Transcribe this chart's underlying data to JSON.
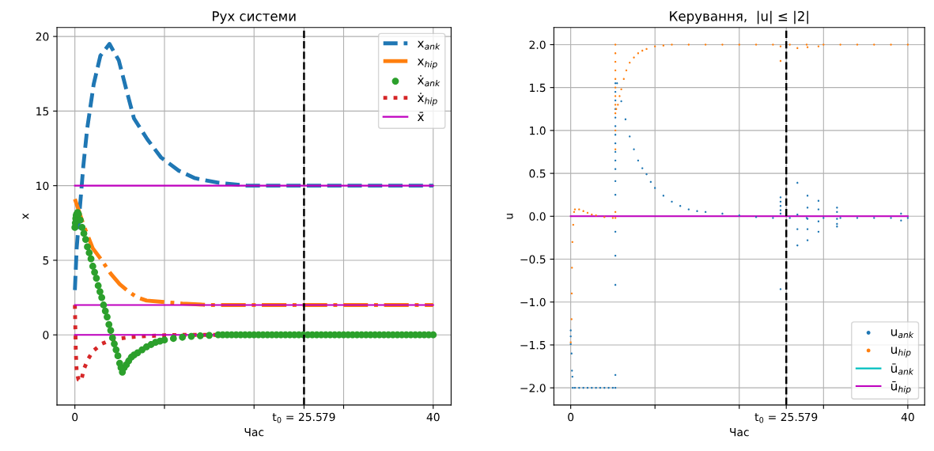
{
  "chart_data": [
    {
      "type": "line",
      "title": "Рух системи",
      "xlabel": "Час",
      "ylabel": "x",
      "xlim": [
        -2,
        42
      ],
      "ylim": [
        -4.7,
        20.6
      ],
      "xticks": [
        0,
        {
          "value": 10,
          "label": null
        },
        {
          "value": 20,
          "label": null
        },
        {
          "value": 25.579,
          "label": "t$_{0}$ = 25.579"
        },
        {
          "value": 30,
          "label": null
        },
        40
      ],
      "yticks": [
        0,
        5,
        10,
        15,
        20
      ],
      "grid": true,
      "legend": "top right",
      "ref_lines": [
        {
          "axis": "x",
          "value": 25.579,
          "color": "#000000",
          "line_style": "dashed"
        }
      ],
      "series": [
        {
          "name": "x$_{ank}$",
          "color": "#1f77b4",
          "line_style": "dashed",
          "x": [
            0,
            0.2,
            0.5,
            0.94,
            1.37,
            2.1,
            2.84,
            3.86,
            4.9,
            5.76,
            6.6,
            8.1,
            9.6,
            11.6,
            13.4,
            16,
            19.2,
            25,
            30,
            35,
            40
          ],
          "values": [
            3.0,
            5.8,
            8.1,
            11.3,
            13.8,
            16.8,
            18.7,
            19.5,
            18.4,
            16.4,
            14.5,
            13.1,
            11.9,
            11.0,
            10.5,
            10.2,
            10.0,
            10.0,
            10.0,
            10.0,
            10.0
          ]
        },
        {
          "name": "x$_{hip}$",
          "color": "#ff7f0e",
          "line_style": "dashdot",
          "x": [
            0,
            0.5,
            1,
            2,
            3,
            4,
            5,
            6,
            7,
            8,
            10,
            12,
            15,
            20,
            30,
            40
          ],
          "values": [
            9.1,
            8.2,
            7.3,
            5.8,
            5.0,
            4.1,
            3.4,
            2.9,
            2.5,
            2.3,
            2.2,
            2.1,
            2.0,
            2.0,
            2.0,
            2.0
          ]
        },
        {
          "name": "ẋ$_{ank}$",
          "type": "scatter",
          "color": "#2ca02c",
          "marker": "circle",
          "x": [
            0,
            0.05,
            0.1,
            0.15,
            0.2,
            0.3,
            0.4,
            0.6,
            0.8,
            1.0,
            1.2,
            1.4,
            1.6,
            1.8,
            2.0,
            2.2,
            2.4,
            2.6,
            2.8,
            3.0,
            3.2,
            3.4,
            3.6,
            3.8,
            4.0,
            4.2,
            4.4,
            4.6,
            4.8,
            5.0,
            5.15,
            5.3,
            5.5,
            5.75,
            6.0,
            6.3,
            6.6,
            7.0,
            7.5,
            8.0,
            8.5,
            9,
            9.5,
            10,
            11,
            12,
            13,
            14,
            15,
            16,
            16.5,
            17,
            17.5,
            18,
            18.5,
            19,
            19.5,
            20,
            20.5,
            21,
            21.5,
            22,
            22.5,
            23,
            23.5,
            24,
            24.5,
            25,
            25.5,
            26,
            26.5,
            27,
            27.5,
            28,
            28.5,
            29,
            29.5,
            30,
            30.5,
            31,
            31.5,
            32,
            32.5,
            33,
            33.5,
            34,
            34.5,
            35,
            35.5,
            36,
            36.5,
            37,
            37.5,
            38,
            38.5,
            39,
            39.5,
            40
          ],
          "values": [
            7.2,
            7.5,
            7.8,
            8.0,
            8.1,
            8.2,
            8.1,
            7.7,
            7.2,
            6.8,
            6.4,
            5.9,
            5.5,
            5.1,
            4.6,
            4.2,
            3.8,
            3.3,
            2.9,
            2.5,
            2.0,
            1.6,
            1.2,
            0.7,
            0.3,
            -0.2,
            -0.6,
            -1.0,
            -1.4,
            -1.9,
            -2.2,
            -2.5,
            -2.2,
            -2.0,
            -1.75,
            -1.5,
            -1.35,
            -1.2,
            -1.0,
            -0.8,
            -0.65,
            -0.5,
            -0.42,
            -0.34,
            -0.24,
            -0.16,
            -0.1,
            -0.06,
            -0.03,
            0,
            0,
            0,
            0,
            0,
            0,
            0,
            0,
            0,
            0,
            0,
            0,
            0,
            0,
            0,
            0,
            0,
            0,
            0,
            0,
            0,
            0,
            0,
            0,
            0,
            0,
            0,
            0,
            0,
            0,
            0,
            0,
            0,
            0,
            0,
            0,
            0,
            0,
            0,
            0,
            0,
            0,
            0,
            0,
            0,
            0,
            0,
            0,
            0
          ]
        },
        {
          "name": "ẋ$_{hip}$",
          "color": "#d62728",
          "line_style": "dotted",
          "x": [
            0,
            0.05,
            0.1,
            0.2,
            0.4,
            0.7,
            1,
            1.5,
            2,
            3,
            4,
            6,
            8,
            10,
            12,
            20,
            30,
            40
          ],
          "values": [
            2.0,
            0.5,
            -1.0,
            -2.5,
            -3.0,
            -3.1,
            -2.3,
            -1.6,
            -1.1,
            -0.6,
            -0.34,
            -0.16,
            -0.08,
            -0.03,
            0,
            0,
            0,
            0
          ]
        },
        {
          "name": "x̄",
          "color": "#bf00bf",
          "line_style": "solid",
          "x": [
            0,
            40
          ],
          "values": [
            10,
            10
          ]
        },
        {
          "color": "#bf00bf",
          "line_style": "solid",
          "x": [
            0,
            40
          ],
          "values": [
            2,
            2
          ]
        },
        {
          "color": "#bf00bf",
          "line_style": "solid",
          "x": [
            0,
            40
          ],
          "values": [
            0,
            0
          ]
        }
      ]
    },
    {
      "type": "scatter",
      "title": "Керування,  |u| ≤ |2|",
      "xlabel": "Час",
      "ylabel": "u",
      "xlim": [
        -2,
        42
      ],
      "ylim": [
        -2.2,
        2.2
      ],
      "xticks": [
        0,
        {
          "value": 10,
          "label": null
        },
        {
          "value": 20,
          "label": null
        },
        {
          "value": 25.579,
          "label": "t$_{0}$ = 25.579"
        },
        {
          "value": 30,
          "label": null
        },
        40
      ],
      "yticks": [
        {
          "value": -2,
          "label": "−2.0"
        },
        {
          "value": -1.5,
          "label": "−1.5"
        },
        {
          "value": -1,
          "label": "−1.0"
        },
        {
          "value": -0.5,
          "label": "−0.5"
        },
        {
          "value": 0,
          "label": "0.0"
        },
        {
          "value": 0.5,
          "label": "0.5"
        },
        {
          "value": 1,
          "label": "1.0"
        },
        {
          "value": 1.5,
          "label": "1.5"
        },
        {
          "value": 2,
          "label": "2.0"
        }
      ],
      "grid": true,
      "legend": "bottom right",
      "ref_lines": [
        {
          "axis": "x",
          "value": 25.579,
          "color": "#000000",
          "line_style": "dashed"
        }
      ],
      "series": [
        {
          "name": "u$_{ank}$",
          "color": "#1f77b4",
          "marker": "circle",
          "x": [
            0,
            0,
            0,
            0.1,
            0.15,
            0.2,
            0.25,
            0.5,
            1,
            1.5,
            2,
            2.5,
            3,
            3.5,
            4,
            4.5,
            5,
            5.3,
            5.3,
            5.3,
            5.3,
            5.3,
            5.3,
            5.3,
            5.3,
            5.3,
            5.3,
            5.3,
            5.3,
            5.3,
            5.3,
            5.3,
            5.3,
            5.3,
            5.3,
            5.5,
            6,
            6.5,
            7,
            7.5,
            8,
            8.5,
            9,
            9.5,
            10,
            11,
            12,
            13,
            14,
            15,
            16,
            18,
            20,
            22,
            24,
            26,
            28,
            30,
            32,
            34,
            36,
            38,
            40,
            24.9,
            24.9,
            24.9,
            24.9,
            24.9,
            24.9,
            26.9,
            26.9,
            26.9,
            26.9,
            28.1,
            28.1,
            28.1,
            28.1,
            28.1,
            29.4,
            29.4,
            29.4,
            29.4,
            31.6,
            31.6,
            31.6,
            31.6,
            31.6,
            39.2,
            39.2
          ],
          "values": [
            -1.33,
            -1.4,
            -1.49,
            -1.6,
            -1.8,
            -1.87,
            -2.0,
            -2.0,
            -2.0,
            -2.0,
            -2.0,
            -2.0,
            -2.0,
            -2.0,
            -2.0,
            -2.0,
            -2.0,
            -2.0,
            -1.85,
            -0.8,
            -0.46,
            -0.18,
            0.25,
            0.41,
            0.55,
            0.65,
            0.75,
            0.85,
            0.95,
            1.05,
            1.15,
            1.25,
            1.35,
            1.45,
            1.55,
            1.55,
            1.34,
            1.13,
            0.93,
            0.78,
            0.65,
            0.56,
            0.49,
            0.4,
            0.33,
            0.24,
            0.17,
            0.12,
            0.08,
            0.06,
            0.05,
            0.03,
            0.01,
            -0.01,
            -0.02,
            -0.02,
            -0.02,
            -0.02,
            -0.02,
            -0.02,
            -0.02,
            -0.02,
            -0.02,
            0.22,
            0.17,
            0.12,
            0.07,
            0.03,
            -0.85,
            0.39,
            0.02,
            -0.15,
            -0.34,
            0.24,
            0.1,
            -0.03,
            -0.15,
            -0.28,
            0.18,
            0.08,
            -0.06,
            -0.18,
            0.1,
            0.05,
            -0.03,
            -0.09,
            -0.12,
            -0.05,
            0.03
          ]
        },
        {
          "name": "u$_{hip}$",
          "color": "#ff7f0e",
          "marker": "circle",
          "x": [
            0,
            0.1,
            0.12,
            0.15,
            0.2,
            0.3,
            0.4,
            0.5,
            1,
            1.5,
            2,
            2.5,
            3,
            4,
            5,
            5.3,
            5.3,
            5.3,
            5.3,
            5.3,
            5.3,
            5.3,
            5.3,
            5.3,
            5.3,
            5.3,
            5.3,
            5.3,
            5.4,
            5.6,
            5.8,
            6,
            6.3,
            6.6,
            7,
            7.5,
            8,
            8.5,
            9,
            10,
            11,
            12,
            14,
            16,
            18,
            20,
            22,
            24,
            26,
            28,
            30,
            32,
            34,
            36,
            38,
            40,
            24.9,
            24.9,
            26.9,
            28.1,
            29.4
          ],
          "values": [
            -1.47,
            -1.2,
            -0.9,
            -0.6,
            -0.3,
            -0.1,
            0.05,
            0.08,
            0.08,
            0.06,
            0.04,
            0.02,
            0.01,
            -0.01,
            -0.02,
            -0.02,
            0.05,
            0.78,
            1.0,
            1.2,
            1.3,
            1.4,
            1.5,
            1.6,
            1.7,
            1.8,
            1.9,
            2.0,
            1.25,
            1.3,
            1.4,
            1.48,
            1.6,
            1.7,
            1.79,
            1.85,
            1.9,
            1.93,
            1.95,
            1.98,
            1.99,
            2.0,
            2.0,
            2.0,
            2.0,
            2.0,
            2.0,
            2.0,
            2.0,
            2.0,
            2.0,
            2.0,
            2.0,
            2.0,
            2.0,
            2.0,
            1.81,
            1.98,
            1.96,
            1.97,
            1.98
          ]
        },
        {
          "name": "ū$_{ank}$",
          "type": "line",
          "color": "#00bfbf",
          "line_style": "solid"
        },
        {
          "name": "ū$_{hip}$",
          "type": "line",
          "color": "#bf00bf",
          "line_style": "solid",
          "x": [
            0,
            40
          ],
          "values": [
            0,
            0
          ]
        }
      ]
    }
  ]
}
